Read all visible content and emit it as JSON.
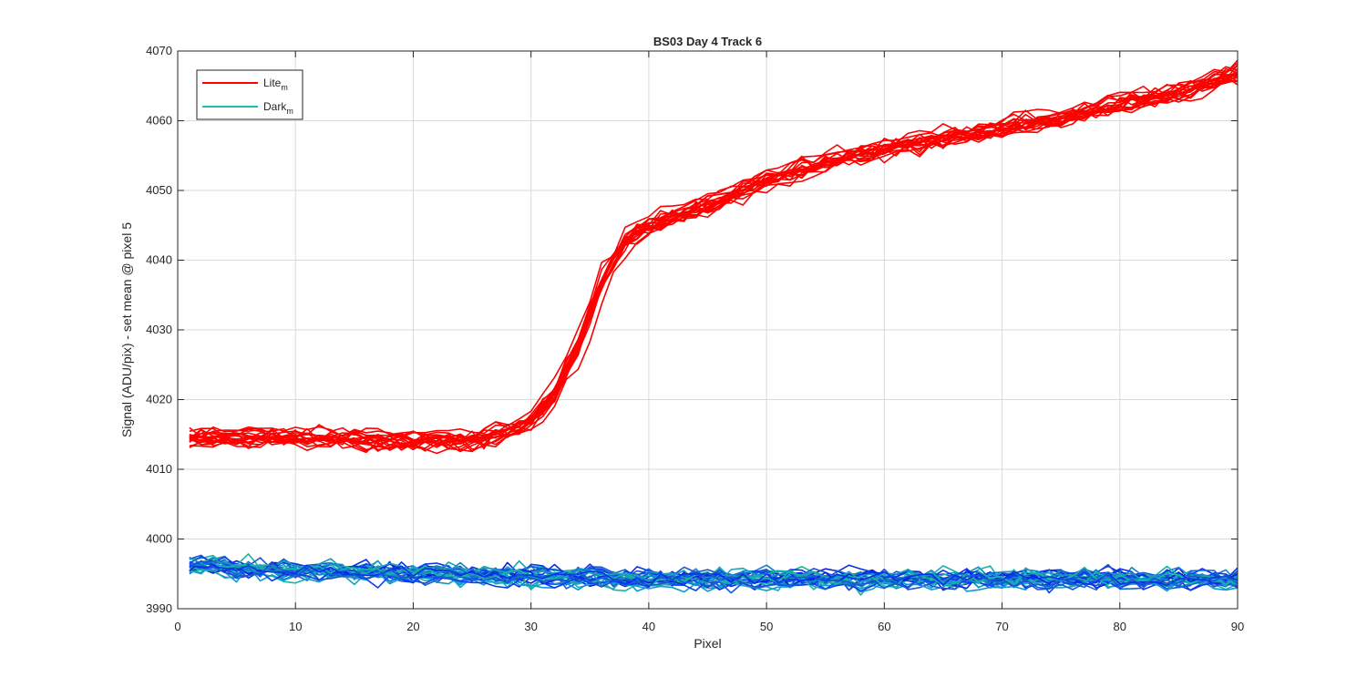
{
  "chart_data": {
    "type": "line",
    "title": "BS03 Day 4 Track 6",
    "xlabel": "Pixel",
    "ylabel": "Signal (ADU/pix) - set mean @ pixel 5",
    "xlim": [
      0,
      90
    ],
    "ylim": [
      3990,
      4070
    ],
    "x_ticks": [
      0,
      10,
      20,
      30,
      40,
      50,
      60,
      70,
      80,
      90
    ],
    "y_ticks": [
      3990,
      4000,
      4010,
      4020,
      4030,
      4040,
      4050,
      4060,
      4070
    ],
    "x_tick_labels": [
      "0",
      "10",
      "20",
      "30",
      "40",
      "50",
      "60",
      "70",
      "80",
      "90"
    ],
    "y_tick_labels": [
      "3990",
      "4000",
      "4010",
      "4020",
      "4030",
      "4040",
      "4050",
      "4060",
      "4070"
    ],
    "grid": true,
    "legend_placement": "top-left",
    "legend": [
      {
        "label": "Lite",
        "subscript": "m",
        "color": "#ff0000"
      },
      {
        "label": "Dark",
        "subscript": "m",
        "color": "#1abfaa"
      }
    ],
    "x": [
      1,
      5,
      10,
      15,
      20,
      25,
      28,
      30,
      32,
      34,
      36,
      38,
      40,
      45,
      50,
      55,
      60,
      65,
      70,
      75,
      80,
      85,
      90
    ],
    "series": [
      {
        "name": "Lite",
        "color": "#ff0000",
        "curve_count": 20,
        "spread": 2.2,
        "values": [
          4014.5,
          4014.5,
          4014.5,
          4014.3,
          4014.0,
          4014.3,
          4015.3,
          4017.0,
          4021.0,
          4028.0,
          4037.0,
          4043.0,
          4045.0,
          4048.0,
          4051.5,
          4054.0,
          4056.0,
          4057.5,
          4059.0,
          4060.5,
          4062.5,
          4064.0,
          4067.0
        ]
      },
      {
        "name": "Dark",
        "color": "#1abfaa",
        "curve_count": 28,
        "spread": 2.5,
        "values": [
          3996.3,
          3996.0,
          3995.6,
          3995.4,
          3995.1,
          3994.9,
          3994.8,
          3994.8,
          3994.7,
          3994.6,
          3994.5,
          3994.5,
          3994.4,
          3994.3,
          3994.3,
          3994.3,
          3994.3,
          3994.3,
          3994.3,
          3994.3,
          3994.3,
          3994.2,
          3994.2
        ]
      }
    ],
    "dark_colors": [
      "#0a1ee0",
      "#0d3cf0",
      "#1260dc",
      "#1483c8",
      "#17a0b8",
      "#19b4a8",
      "#0533e6",
      "#1a55d2",
      "#1296d2",
      "#18aab4"
    ]
  }
}
